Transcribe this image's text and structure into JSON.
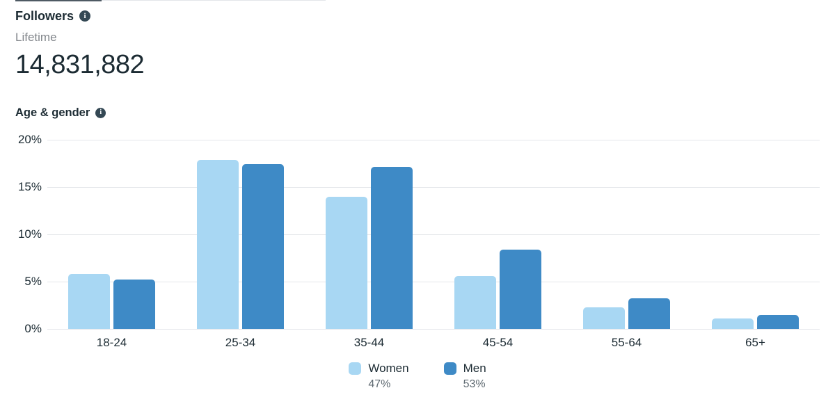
{
  "page": {
    "background": "#ffffff",
    "text_dark": "#1c2b33",
    "text_gray": "#82868b",
    "gridline_color": "#e4e6ea"
  },
  "icons": {
    "info_glyph": "i"
  },
  "followers_card": {
    "title": "Followers",
    "subtitle": "Lifetime",
    "count": "14,831,882"
  },
  "age_gender_section": {
    "title": "Age & gender"
  },
  "chart_data": {
    "type": "bar",
    "title": "Age & gender",
    "categories": [
      "18-24",
      "25-34",
      "35-44",
      "45-54",
      "55-64",
      "65+"
    ],
    "series": [
      {
        "name": "Women",
        "share": "47%",
        "color": "#A8D7F3",
        "values": [
          5.8,
          17.9,
          14.0,
          5.6,
          2.3,
          1.1
        ]
      },
      {
        "name": "Men",
        "share": "53%",
        "color": "#3E8AC6",
        "values": [
          5.2,
          17.4,
          17.1,
          8.4,
          3.2,
          1.5
        ]
      }
    ],
    "y_ticks": [
      "20%",
      "15%",
      "10%",
      "5%",
      "0%"
    ],
    "ylim": [
      0,
      20
    ],
    "xlabel": "",
    "ylabel": "",
    "grid": "horizontal",
    "legend_position": "bottom-center"
  }
}
